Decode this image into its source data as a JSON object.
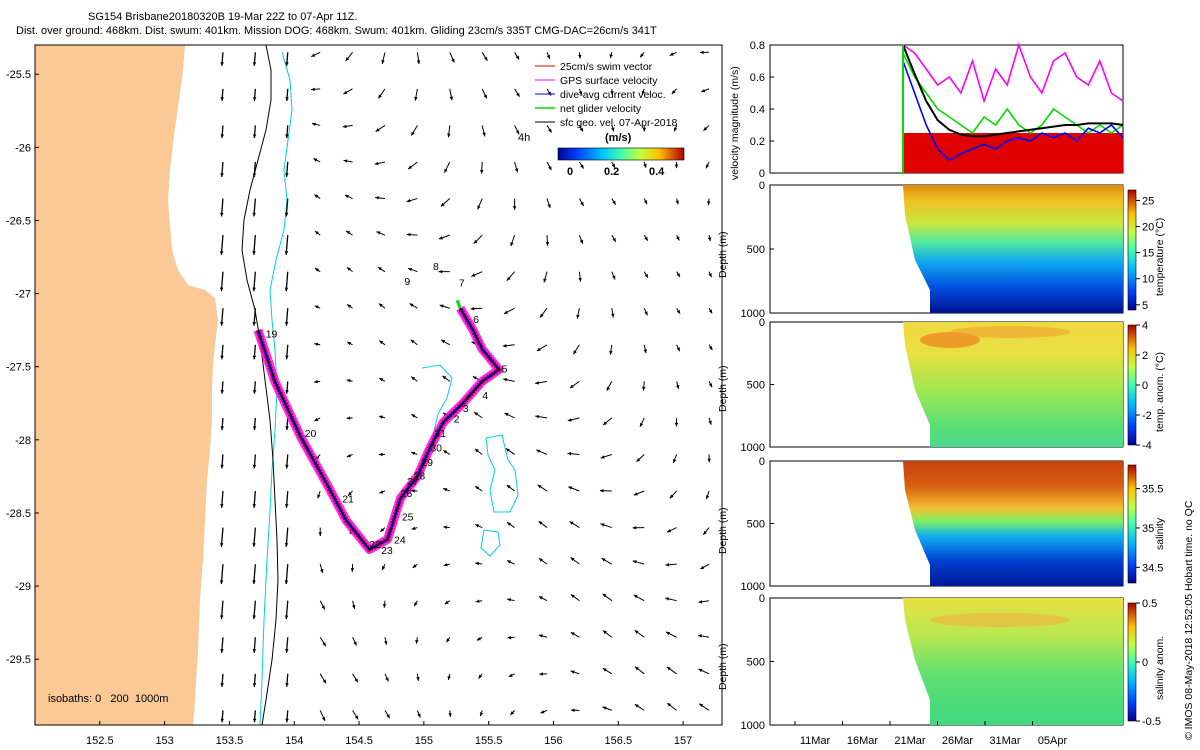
{
  "header": {
    "line1": "SG154 Brisbane20180320B 19-Mar 22Z to 07-Apr 11Z.",
    "line2": "Dist. over ground: 468km. Dist. swum: 401km. Mission DOG: 468km. Swum: 401km. Gliding 23cm/s 335T CMG-DAC=26cm/s 341T"
  },
  "footer_note": "© IMOS 08-May-2018 12:52:05 Hobart time. no QC",
  "colors": {
    "land": "#fbc995",
    "track": "#000000",
    "swim_vector": "#e00000",
    "gps_velocity": "#ff00ff",
    "dive_avg": "#0000ff",
    "net_glider": "#00dd00",
    "isobath_200": "#00d0e0",
    "isobath_1000": "#000000"
  },
  "chart_data": [
    {
      "type": "map",
      "xticks": [
        "152.5",
        "153",
        "153.5",
        "154",
        "154.5",
        "155",
        "155.5",
        "156",
        "156.5",
        "157"
      ],
      "yticks": [
        "-25.5",
        "-26",
        "-26.5",
        "-27",
        "-27.5",
        "-28",
        "-28.5",
        "-29",
        "-29.5"
      ],
      "xlim": [
        152.0,
        157.3
      ],
      "ylim": [
        -29.95,
        -25.3
      ],
      "legend": {
        "placement": "top-right",
        "entries": [
          {
            "label": "25cm/s swim vector",
            "color": "#e00000"
          },
          {
            "label": "GPS surface velocity",
            "color": "#ff00ff"
          },
          {
            "label": "dive-avg current veloc.",
            "color": "#0000ff"
          },
          {
            "label": "net glider velocity",
            "color": "#00dd00"
          },
          {
            "label": "sfc geo. vel. 07-Apr-2018",
            "color": "#000000"
          }
        ],
        "time_label": "4h"
      },
      "colorbar": {
        "label": "(m/s)",
        "ticks": [
          "0",
          "0.2",
          "0.4"
        ]
      },
      "isobath_label": "isobaths: 0   200  1000m",
      "track": [
        {
          "lon": 153.72,
          "lat": -27.25
        },
        {
          "lon": 153.85,
          "lat": -27.6
        },
        {
          "lon": 154.05,
          "lat": -27.98
        },
        {
          "lon": 154.25,
          "lat": -28.3
        },
        {
          "lon": 154.4,
          "lat": -28.55
        },
        {
          "lon": 154.58,
          "lat": -28.75
        },
        {
          "lon": 154.72,
          "lat": -28.68
        },
        {
          "lon": 154.82,
          "lat": -28.4
        },
        {
          "lon": 154.95,
          "lat": -28.25
        },
        {
          "lon": 155.05,
          "lat": -28.05
        },
        {
          "lon": 155.15,
          "lat": -27.88
        },
        {
          "lon": 155.3,
          "lat": -27.75
        },
        {
          "lon": 155.45,
          "lat": -27.6
        },
        {
          "lon": 155.58,
          "lat": -27.52
        },
        {
          "lon": 155.45,
          "lat": -27.38
        },
        {
          "lon": 155.38,
          "lat": -27.25
        },
        {
          "lon": 155.28,
          "lat": -27.1
        }
      ],
      "day_labels": [
        {
          "text": "6",
          "lon": 155.38,
          "lat": -27.2
        },
        {
          "text": "7",
          "lon": 155.27,
          "lat": -26.95
        },
        {
          "text": "8",
          "lon": 155.07,
          "lat": -26.84
        },
        {
          "text": "9",
          "lon": 154.85,
          "lat": -26.94
        },
        {
          "text": "5",
          "lon": 155.6,
          "lat": -27.54
        },
        {
          "text": "4",
          "lon": 155.45,
          "lat": -27.72
        },
        {
          "text": "3",
          "lon": 155.3,
          "lat": -27.81
        },
        {
          "text": "2",
          "lon": 155.23,
          "lat": -27.88
        },
        {
          "text": "31",
          "lon": 155.08,
          "lat": -27.98
        },
        {
          "text": "30",
          "lon": 155.05,
          "lat": -28.08
        },
        {
          "text": "29",
          "lon": 154.98,
          "lat": -28.18
        },
        {
          "text": "28",
          "lon": 154.92,
          "lat": -28.27
        },
        {
          "text": "27",
          "lon": 154.87,
          "lat": -28.31
        },
        {
          "text": "26",
          "lon": 154.82,
          "lat": -28.39
        },
        {
          "text": "25",
          "lon": 154.83,
          "lat": -28.55
        },
        {
          "text": "24",
          "lon": 154.77,
          "lat": -28.71
        },
        {
          "text": "23",
          "lon": 154.67,
          "lat": -28.78
        },
        {
          "text": "22",
          "lon": 154.58,
          "lat": -28.74
        },
        {
          "text": "21",
          "lon": 154.37,
          "lat": -28.43
        },
        {
          "text": "20",
          "lon": 154.08,
          "lat": -27.98
        },
        {
          "text": "19",
          "lon": 153.78,
          "lat": -27.3
        }
      ]
    },
    {
      "type": "line",
      "ylabel": "velocity magnitude (m/s)",
      "ylim": [
        0,
        0.8
      ],
      "yticks": [
        "0",
        "0.2",
        "0.4",
        "0.6",
        "0.8"
      ],
      "x_start": "19-Mar 22Z",
      "series": [
        {
          "name": "swim speed",
          "color": "#e00000",
          "values": [
            0.25
          ]
        },
        {
          "name": "GPS surface velocity",
          "color": "#ff00ff",
          "values": [
            0.8,
            0.75,
            0.65,
            0.55,
            0.6,
            0.5,
            0.7,
            0.45,
            0.65,
            0.55,
            0.8,
            0.6,
            0.5,
            0.7,
            0.75,
            0.6,
            0.55,
            0.7,
            0.5,
            0.45
          ]
        },
        {
          "name": "dive-avg current veloc.",
          "color": "#0000ff",
          "values": [
            0.7,
            0.5,
            0.3,
            0.15,
            0.08,
            0.12,
            0.15,
            0.18,
            0.15,
            0.2,
            0.22,
            0.2,
            0.25,
            0.22,
            0.25,
            0.2,
            0.28,
            0.25,
            0.3,
            0.22
          ]
        },
        {
          "name": "net glider velocity",
          "color": "#00dd00",
          "values": [
            0.75,
            0.6,
            0.5,
            0.4,
            0.35,
            0.3,
            0.25,
            0.35,
            0.3,
            0.4,
            0.3,
            0.25,
            0.3,
            0.4,
            0.35,
            0.3,
            0.25,
            0.3,
            0.25,
            0.3
          ]
        },
        {
          "name": "sfc geo. vel.",
          "color": "#000000",
          "values": [
            0.8,
            0.62,
            0.45,
            0.33,
            0.27,
            0.24,
            0.23,
            0.23,
            0.24,
            0.25,
            0.26,
            0.27,
            0.28,
            0.29,
            0.3,
            0.3,
            0.31,
            0.31,
            0.31,
            0.3
          ]
        }
      ]
    },
    {
      "type": "heatmap",
      "ylabel": "Depth (m)",
      "colorbar_label": "temperature (°C)",
      "cticks": [
        "5",
        "10",
        "15",
        "20",
        "25"
      ],
      "clim": [
        4,
        27
      ],
      "yticks": [
        "0",
        "500",
        "1000"
      ],
      "ylim": [
        1000,
        0
      ]
    },
    {
      "type": "heatmap",
      "ylabel": "Depth (m)",
      "colorbar_label": "temp. anom. (°C)",
      "cticks": [
        "4",
        "2",
        "0",
        "-2",
        "-4"
      ],
      "clim": [
        -4,
        4
      ],
      "yticks": [
        "0",
        "500",
        "1000"
      ],
      "ylim": [
        1000,
        0
      ]
    },
    {
      "type": "heatmap",
      "ylabel": "Depth (m)",
      "colorbar_label": "salinity",
      "cticks": [
        "35.5",
        "35",
        "34.5"
      ],
      "clim": [
        34.3,
        35.8
      ],
      "yticks": [
        "0",
        "500",
        "1000"
      ],
      "ylim": [
        1000,
        0
      ]
    },
    {
      "type": "heatmap",
      "ylabel": "Depth (m)",
      "colorbar_label": "salinity anom.",
      "cticks": [
        "0.5",
        "0",
        "-0.5"
      ],
      "clim": [
        -0.5,
        0.5
      ],
      "yticks": [
        "0",
        "500",
        "1000"
      ],
      "ylim": [
        1000,
        0
      ],
      "xticks": [
        "11Mar",
        "16Mar",
        "21Mar",
        "26Mar",
        "31Mar",
        "05Apr"
      ]
    }
  ]
}
